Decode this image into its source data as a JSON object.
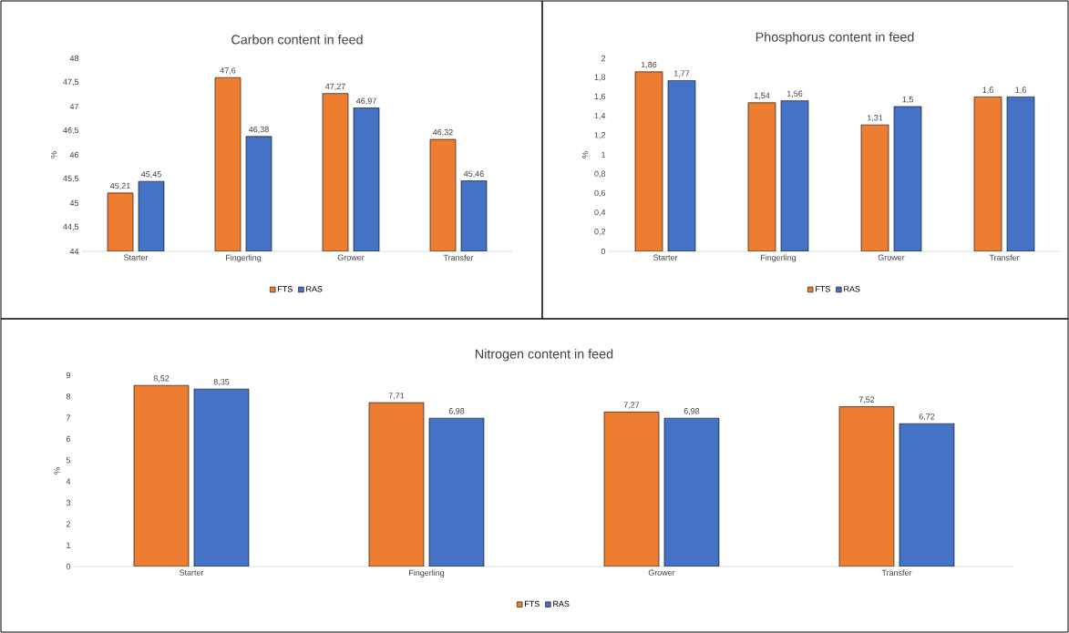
{
  "chart_data": [
    {
      "type": "bar",
      "title": "Carbon content in feed",
      "ylabel": "%",
      "categories": [
        "Starter",
        "Fingerling",
        "Grower",
        "Transfer"
      ],
      "series": [
        {
          "name": "FTS",
          "color": "#ed7d31",
          "values": [
            45.21,
            47.6,
            47.27,
            46.32
          ],
          "value_labels": [
            "45,21",
            "47,6",
            "47,27",
            "46,32"
          ]
        },
        {
          "name": "RAS",
          "color": "#4472c4",
          "values": [
            45.45,
            46.38,
            46.97,
            45.46
          ],
          "value_labels": [
            "45,45",
            "46,38",
            "46,97",
            "45,46"
          ]
        }
      ],
      "ylim": [
        44,
        48
      ],
      "yticks": [
        44,
        {
          "value": 44.5,
          "label": "44,5"
        },
        45,
        {
          "value": 45.5,
          "label": "45,5"
        },
        46,
        {
          "value": 46.5,
          "label": "46,5"
        },
        47,
        {
          "value": 47.5,
          "label": "47,5"
        },
        48
      ],
      "legend": "bottom"
    },
    {
      "type": "bar",
      "title": "Phosphorus content in feed",
      "ylabel": "%",
      "categories": [
        "Starter",
        "Fingerling",
        "Grower",
        "Transfer"
      ],
      "series": [
        {
          "name": "FTS",
          "color": "#ed7d31",
          "values": [
            1.86,
            1.54,
            1.31,
            1.6
          ],
          "value_labels": [
            "1,86",
            "1,54",
            "1,31",
            "1,6"
          ]
        },
        {
          "name": "RAS",
          "color": "#4472c4",
          "values": [
            1.77,
            1.56,
            1.5,
            1.6
          ],
          "value_labels": [
            "1,77",
            "1,56",
            "1,5",
            "1,6"
          ]
        }
      ],
      "ylim": [
        0,
        2
      ],
      "yticks": [
        0,
        {
          "value": 0.2,
          "label": "0,2"
        },
        {
          "value": 0.4,
          "label": "0,4"
        },
        {
          "value": 0.6,
          "label": "0,6"
        },
        {
          "value": 0.8,
          "label": "0,8"
        },
        1,
        {
          "value": 1.2,
          "label": "1,2"
        },
        {
          "value": 1.4,
          "label": "1,4"
        },
        {
          "value": 1.6,
          "label": "1,6"
        },
        {
          "value": 1.8,
          "label": "1,8"
        },
        2
      ],
      "legend": "bottom"
    },
    {
      "type": "bar",
      "title": "Nitrogen content in feed",
      "ylabel": "%",
      "categories": [
        "Starter",
        "Fingerling",
        "Grower",
        "Transfer"
      ],
      "series": [
        {
          "name": "FTS",
          "color": "#ed7d31",
          "values": [
            8.52,
            7.71,
            7.27,
            7.52
          ],
          "value_labels": [
            "8,52",
            "7,71",
            "7,27",
            "7,52"
          ]
        },
        {
          "name": "RAS",
          "color": "#4472c4",
          "values": [
            8.35,
            6.98,
            6.98,
            6.72
          ],
          "value_labels": [
            "8,35",
            "6,98",
            "6,98",
            "6,72"
          ]
        }
      ],
      "ylim": [
        0,
        9
      ],
      "yticks": [
        0,
        1,
        2,
        3,
        4,
        5,
        6,
        7,
        8,
        9
      ],
      "legend": "bottom"
    }
  ]
}
